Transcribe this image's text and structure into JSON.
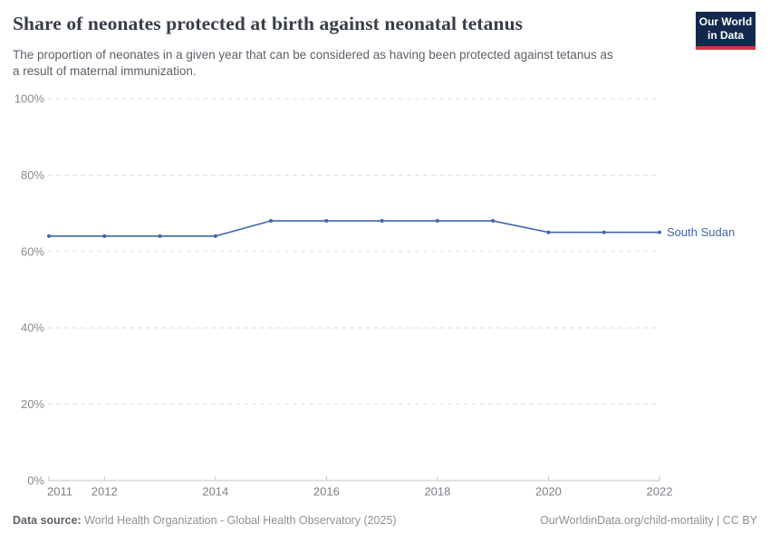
{
  "header": {
    "title": "Share of neonates protected at birth against neonatal tetanus",
    "subtitle_lines": [
      "The proportion of neonates in a given year that can be considered as having been protected against tetanus as",
      "a result of maternal immunization."
    ]
  },
  "logo": {
    "line1": "Our World",
    "line2": "in Data",
    "bg_color": "#12294d",
    "accent_color": "#d4353d"
  },
  "chart_data": {
    "type": "line",
    "title": "Share of neonates protected at birth against neonatal tetanus",
    "x": [
      2011,
      2012,
      2013,
      2014,
      2015,
      2016,
      2017,
      2018,
      2019,
      2020,
      2021,
      2022
    ],
    "series": [
      {
        "name": "South Sudan",
        "color": "#4266a8",
        "values": [
          64,
          64,
          64,
          64,
          68,
          68,
          68,
          68,
          68,
          65,
          65,
          65
        ]
      }
    ],
    "xlim": [
      2011,
      2022
    ],
    "ylim": [
      0,
      100
    ],
    "yticks": [
      0,
      20,
      40,
      60,
      80,
      100
    ],
    "ytick_suffix": "%",
    "xticks": [
      2011,
      2012,
      2014,
      2016,
      2018,
      2020,
      2022
    ],
    "grid": true,
    "grid_color": "#dcdee0",
    "axis_color": "#c3c6c9",
    "tick_label_color": "#858b91",
    "legend": "series-end-label"
  },
  "footer": {
    "datasource_label": "Data source:",
    "datasource_value": " World Health Organization - Global Health Observatory (2025)",
    "link": "OurWorldinData.org/child-mortality",
    "separator": " | ",
    "license": "CC BY"
  }
}
